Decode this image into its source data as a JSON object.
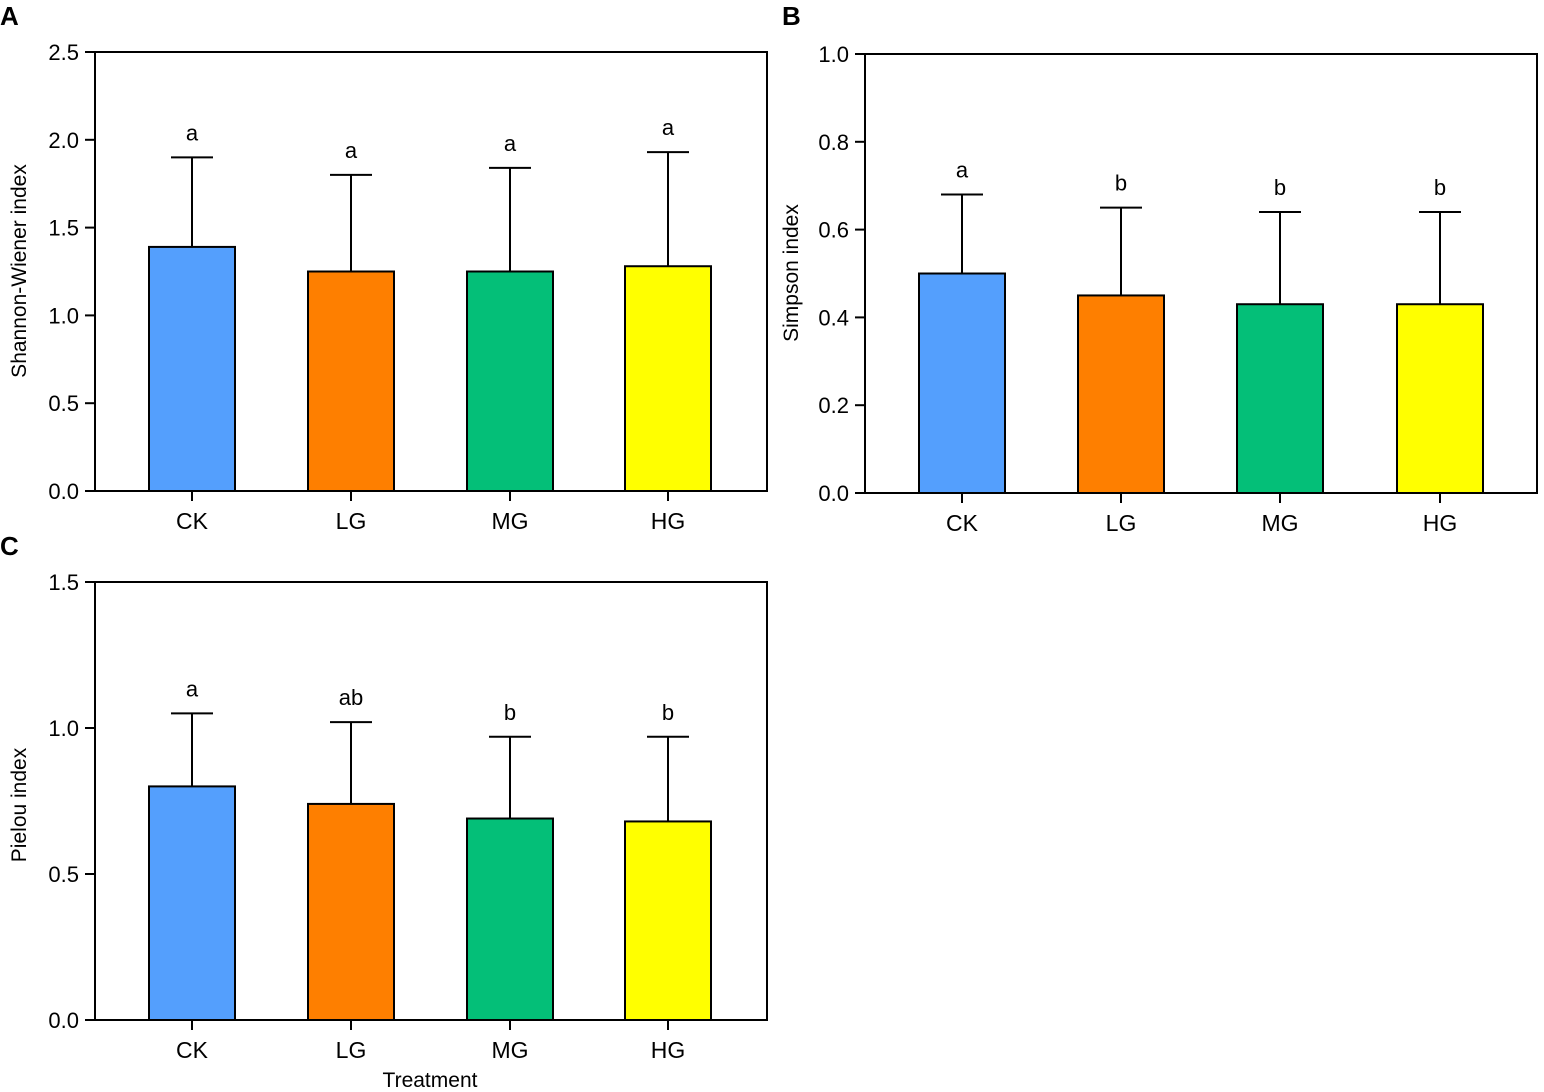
{
  "colors": {
    "CK": "#549ffd",
    "LG": "#fe7f00",
    "MG": "#04bf78",
    "HG": "#ffff00",
    "axis": "#000000"
  },
  "chart_data": [
    {
      "panel": "A",
      "type": "bar",
      "ylabel": "Shannon-Wiener index",
      "xlabel": "",
      "ylim": [
        0,
        2.5
      ],
      "yticks": [
        "0.0",
        "0.5",
        "1.0",
        "1.5",
        "2.0",
        "2.5"
      ],
      "categories": [
        "CK",
        "LG",
        "MG",
        "HG"
      ],
      "values": [
        1.39,
        1.25,
        1.25,
        1.28
      ],
      "errors": [
        0.51,
        0.55,
        0.59,
        0.65
      ],
      "letters": [
        "a",
        "a",
        "a",
        "a"
      ]
    },
    {
      "panel": "B",
      "type": "bar",
      "ylabel": "Simpson index",
      "xlabel": "",
      "ylim": [
        0,
        1.0
      ],
      "yticks": [
        "0.0",
        "0.2",
        "0.4",
        "0.6",
        "0.8",
        "1.0"
      ],
      "categories": [
        "CK",
        "LG",
        "MG",
        "HG"
      ],
      "values": [
        0.5,
        0.45,
        0.43,
        0.43
      ],
      "errors": [
        0.18,
        0.2,
        0.21,
        0.21
      ],
      "letters": [
        "a",
        "b",
        "b",
        "b"
      ]
    },
    {
      "panel": "C",
      "type": "bar",
      "ylabel": "Pielou index",
      "xlabel": "Treatment",
      "ylim": [
        0,
        1.5
      ],
      "yticks": [
        "0.0",
        "0.5",
        "1.0",
        "1.5"
      ],
      "categories": [
        "CK",
        "LG",
        "MG",
        "HG"
      ],
      "values": [
        0.8,
        0.74,
        0.69,
        0.68
      ],
      "errors": [
        0.25,
        0.28,
        0.28,
        0.29
      ],
      "letters": [
        "a",
        "ab",
        "b",
        "b"
      ]
    }
  ]
}
